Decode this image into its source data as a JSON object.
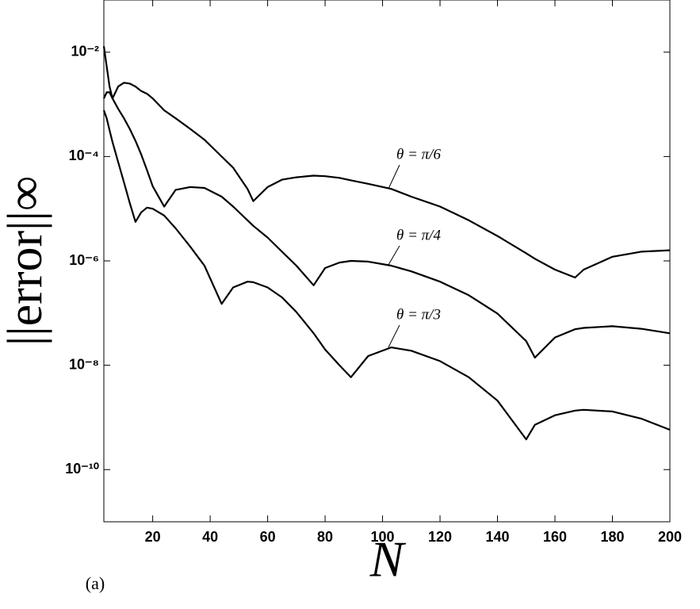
{
  "chart_data": {
    "type": "line",
    "panel_label": "(a)",
    "x_label": "N",
    "y_label": "||error||∞",
    "log_y": true,
    "x": [
      3,
      4,
      5,
      6,
      8,
      10,
      12,
      14,
      16,
      18,
      20,
      24,
      28,
      33,
      38,
      44,
      48,
      53,
      55,
      60,
      65,
      70,
      76,
      80,
      85,
      89,
      95,
      103,
      110,
      120,
      130,
      140,
      150,
      153,
      160,
      167,
      170,
      180,
      190,
      200
    ],
    "series": [
      {
        "name": "θ = π/6",
        "color": "#000000",
        "values": [
          0.013,
          0.0053,
          0.0022,
          0.0013,
          0.0022,
          0.0026,
          0.0025,
          0.0022,
          0.0018,
          0.0016,
          0.0013,
          0.00077,
          0.00054,
          0.00034,
          0.00021,
          0.0001,
          6.1e-05,
          2.4e-05,
          1.4e-05,
          2.6e-05,
          3.6e-05,
          4e-05,
          4.3e-05,
          4.2e-05,
          3.9e-05,
          3.5e-05,
          3e-05,
          2.4e-05,
          1.7e-05,
          1.1e-05,
          6e-06,
          3e-06,
          1.4e-06,
          1.1e-06,
          6.8e-07,
          4.8e-07,
          6.8e-07,
          1.2e-06,
          1.5e-06,
          1.6e-06
        ]
      },
      {
        "name": "θ = π/4",
        "color": "#000000",
        "values": [
          0.0013,
          0.0017,
          0.0017,
          0.0013,
          0.00082,
          0.00054,
          0.00034,
          0.0002,
          0.00011,
          5.5e-05,
          2.7e-05,
          1.1e-05,
          2.3e-05,
          2.6e-05,
          2.5e-05,
          1.7e-05,
          1.1e-05,
          6e-06,
          4.7e-06,
          2.8e-06,
          1.5e-06,
          8.1e-07,
          3.4e-07,
          7.3e-07,
          9.3e-07,
          1e-06,
          9.7e-07,
          8.1e-07,
          6.3e-07,
          4e-07,
          2.2e-07,
          9.8e-08,
          2.9e-08,
          1.4e-08,
          3.4e-08,
          4.9e-08,
          5.2e-08,
          5.6e-08,
          5e-08,
          4.1e-08
        ]
      },
      {
        "name": "θ = π/3",
        "color": "#000000",
        "values": [
          0.00077,
          0.00054,
          0.00032,
          0.00019,
          7.8e-05,
          3.2e-05,
          1.3e-05,
          5.6e-06,
          8.5e-06,
          1.05e-05,
          1e-05,
          7.4e-06,
          4.2e-06,
          1.9e-06,
          8.1e-07,
          1.5e-07,
          3.1e-07,
          4e-07,
          3.9e-07,
          3.1e-07,
          2e-07,
          1.05e-07,
          4.1e-08,
          2e-08,
          1e-08,
          5.9e-09,
          1.5e-08,
          2.2e-08,
          1.9e-08,
          1.2e-08,
          5.9e-09,
          2.1e-09,
          3.8e-10,
          7.2e-10,
          1.1e-09,
          1.35e-09,
          1.4e-09,
          1.3e-09,
          9.5e-10,
          5.8e-10
        ]
      }
    ],
    "xlim": [
      3,
      200
    ],
    "xticks": [
      20,
      40,
      60,
      80,
      100,
      120,
      140,
      160,
      180,
      200
    ],
    "ylim": [
      1e-11,
      0.1
    ],
    "yticks": [
      {
        "value": 1e-10,
        "label": "10⁻¹⁰"
      },
      {
        "value": 1e-08,
        "label": "10⁻⁸"
      },
      {
        "value": 1e-06,
        "label": "10⁻⁶"
      },
      {
        "value": 0.0001,
        "label": "10⁻⁴"
      },
      {
        "value": 0.01,
        "label": "10⁻²"
      }
    ]
  }
}
